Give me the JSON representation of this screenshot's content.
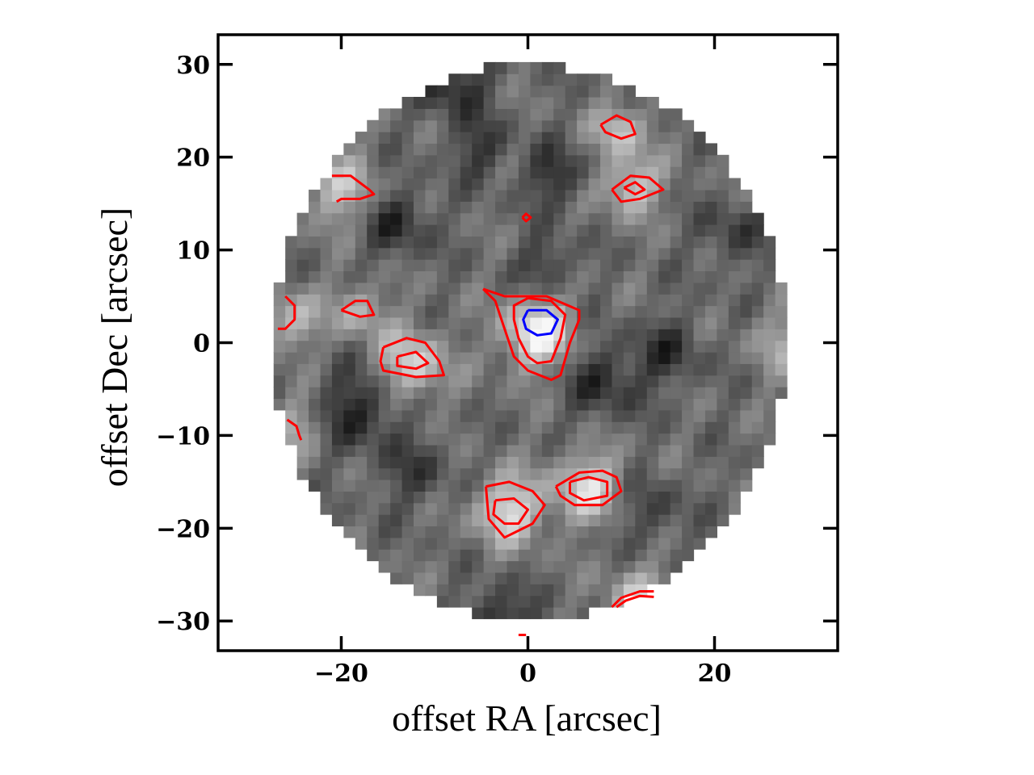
{
  "chart_data": {
    "type": "heatmap",
    "xlabel": "offset RA [arcsec]",
    "ylabel": "offset Dec [arcsec]",
    "xlim": [
      -33.2,
      33.2
    ],
    "ylim": [
      -33.2,
      33.2
    ],
    "x_ticks": [
      -20,
      0,
      20
    ],
    "x_tick_labels": [
      "−20",
      "0",
      "20"
    ],
    "y_ticks": [
      -30,
      -20,
      -10,
      0,
      10,
      20,
      30
    ],
    "y_tick_labels": [
      "−30",
      "−20",
      "−10",
      "0",
      "10",
      "20",
      "30"
    ],
    "colormap": "grayscale",
    "map_extent": {
      "center": [
        0.2,
        0.0
      ],
      "radius_x": 27.6,
      "radius_y": 30.0,
      "pixel_size_arcsec": 1.25
    },
    "bright_peaks": [
      {
        "x": 1.0,
        "y": 1.0,
        "amp": 1.0,
        "sigma": 2.6
      },
      {
        "x": -12.5,
        "y": -2.3,
        "amp": 0.75,
        "sigma": 2.6
      },
      {
        "x": -2.0,
        "y": -18.0,
        "amp": 0.8,
        "sigma": 2.6
      },
      {
        "x": 6.5,
        "y": -15.5,
        "amp": 0.75,
        "sigma": 2.6
      },
      {
        "x": 11.0,
        "y": 17.0,
        "amp": 0.7,
        "sigma": 2.2
      },
      {
        "x": 10.0,
        "y": 23.0,
        "amp": 0.6,
        "sigma": 2.0
      },
      {
        "x": -20.0,
        "y": 16.5,
        "amp": 0.6,
        "sigma": 2.5
      },
      {
        "x": -18.0,
        "y": 3.5,
        "amp": 0.5,
        "sigma": 2.0
      },
      {
        "x": 12.0,
        "y": -28.0,
        "amp": 0.65,
        "sigma": 2.5
      },
      {
        "x": -25.5,
        "y": 2.5,
        "amp": 0.55,
        "sigma": 2.2
      },
      {
        "x": 27.5,
        "y": 0.0,
        "amp": 0.4,
        "sigma": 2.5
      },
      {
        "x": -25.0,
        "y": -9.0,
        "amp": 0.45,
        "sigma": 2.0
      }
    ],
    "dark_features": [
      {
        "x": -18,
        "y": -7,
        "amp": 0.8,
        "sigma": 3.0
      },
      {
        "x": -5,
        "y": 21,
        "amp": 0.6,
        "sigma": 2.2
      },
      {
        "x": 3,
        "y": 18,
        "amp": 0.7,
        "sigma": 2.2
      },
      {
        "x": -14,
        "y": 13,
        "amp": 0.7,
        "sigma": 2.5
      },
      {
        "x": 2,
        "y": 8.5,
        "amp": 0.6,
        "sigma": 2.0
      },
      {
        "x": 8,
        "y": -4,
        "amp": 0.7,
        "sigma": 2.8
      },
      {
        "x": 15,
        "y": -1,
        "amp": 0.6,
        "sigma": 2.5
      },
      {
        "x": -3,
        "y": -30,
        "amp": 0.8,
        "sigma": 2.5
      },
      {
        "x": -8,
        "y": 28,
        "amp": 0.8,
        "sigma": 2.5
      },
      {
        "x": -12,
        "y": -14,
        "amp": 0.5,
        "sigma": 2.5
      },
      {
        "x": 13,
        "y": -18,
        "amp": 0.5,
        "sigma": 2.5
      },
      {
        "x": 22,
        "y": 12,
        "amp": 0.5,
        "sigma": 2.5
      }
    ],
    "contours": [
      {
        "color": "#ff0000",
        "points": [
          [
            -4.8,
            5.8
          ],
          [
            -2.5,
            5.0
          ],
          [
            2.0,
            5.0
          ],
          [
            5.5,
            3.5
          ],
          [
            5.5,
            2.5
          ],
          [
            4.5,
            0.0
          ],
          [
            3.5,
            -3.5
          ],
          [
            2.5,
            -4.0
          ],
          [
            0.0,
            -3.0
          ],
          [
            -1.5,
            -1.5
          ],
          [
            -2.5,
            1.5
          ],
          [
            -3.5,
            4.5
          ],
          [
            -4.8,
            5.8
          ]
        ]
      },
      {
        "color": "#ff0000",
        "points": [
          [
            0.0,
            4.8
          ],
          [
            2.5,
            4.5
          ],
          [
            4.0,
            3.0
          ],
          [
            3.5,
            0.5
          ],
          [
            2.5,
            -2.0
          ],
          [
            1.0,
            -2.2
          ],
          [
            0.0,
            -1.5
          ],
          [
            -1.0,
            0.5
          ],
          [
            -1.5,
            2.5
          ],
          [
            -1.5,
            4.0
          ],
          [
            0.0,
            4.8
          ]
        ]
      },
      {
        "color": "#0000ff",
        "points": [
          [
            0.0,
            3.5
          ],
          [
            2.0,
            3.5
          ],
          [
            3.2,
            2.5
          ],
          [
            2.5,
            1.0
          ],
          [
            1.0,
            0.8
          ],
          [
            -0.2,
            1.5
          ],
          [
            -0.5,
            2.5
          ],
          [
            0.0,
            3.5
          ]
        ]
      },
      {
        "color": "#ff0000",
        "points": [
          [
            -15.5,
            -0.5
          ],
          [
            -13.0,
            0.5
          ],
          [
            -11.0,
            0.0
          ],
          [
            -9.5,
            -2.0
          ],
          [
            -9.0,
            -3.5
          ],
          [
            -12.0,
            -3.7
          ],
          [
            -15.5,
            -3.0
          ],
          [
            -15.8,
            -2.0
          ],
          [
            -15.5,
            -0.5
          ]
        ]
      },
      {
        "color": "#ff0000",
        "points": [
          [
            -14.0,
            -1.5
          ],
          [
            -12.0,
            -1.0
          ],
          [
            -10.7,
            -2.2
          ],
          [
            -12.0,
            -2.8
          ],
          [
            -14.0,
            -2.5
          ],
          [
            -14.0,
            -1.5
          ]
        ]
      },
      {
        "color": "#ff0000",
        "points": [
          [
            -4.5,
            -15.5
          ],
          [
            -2.0,
            -15.0
          ],
          [
            0.5,
            -16.0
          ],
          [
            1.8,
            -17.5
          ],
          [
            0.5,
            -19.5
          ],
          [
            -2.5,
            -21.0
          ],
          [
            -4.2,
            -19.0
          ],
          [
            -4.5,
            -15.5
          ]
        ]
      },
      {
        "color": "#ff0000",
        "points": [
          [
            -3.5,
            -17.0
          ],
          [
            -1.5,
            -16.8
          ],
          [
            0.0,
            -18.0
          ],
          [
            -1.0,
            -19.5
          ],
          [
            -2.5,
            -19.5
          ],
          [
            -3.7,
            -18.5
          ],
          [
            -3.5,
            -17.0
          ]
        ]
      },
      {
        "color": "#ff0000",
        "points": [
          [
            3.0,
            -15.5
          ],
          [
            5.5,
            -14.0
          ],
          [
            8.0,
            -13.8
          ],
          [
            9.5,
            -14.5
          ],
          [
            10.0,
            -16.0
          ],
          [
            8.0,
            -17.5
          ],
          [
            5.0,
            -17.5
          ],
          [
            3.5,
            -16.5
          ],
          [
            3.0,
            -15.5
          ]
        ]
      },
      {
        "color": "#ff0000",
        "points": [
          [
            4.5,
            -15.0
          ],
          [
            6.5,
            -14.5
          ],
          [
            8.5,
            -15.0
          ],
          [
            8.5,
            -16.5
          ],
          [
            6.0,
            -17.0
          ],
          [
            4.5,
            -16.2
          ],
          [
            4.5,
            -15.0
          ]
        ]
      },
      {
        "color": "#ff0000",
        "points": [
          [
            9.0,
            16.5
          ],
          [
            11.0,
            18.0
          ],
          [
            13.0,
            17.8
          ],
          [
            14.5,
            16.5
          ],
          [
            12.0,
            15.5
          ],
          [
            10.0,
            15.2
          ],
          [
            9.0,
            16.5
          ]
        ]
      },
      {
        "color": "#ff0000",
        "points": [
          [
            10.3,
            16.7
          ],
          [
            11.5,
            17.3
          ],
          [
            12.5,
            16.5
          ],
          [
            11.5,
            16.0
          ],
          [
            10.3,
            16.7
          ]
        ]
      },
      {
        "color": "#ff0000",
        "points": [
          [
            7.8,
            23.5
          ],
          [
            9.5,
            24.5
          ],
          [
            11.0,
            23.8
          ],
          [
            11.5,
            22.5
          ],
          [
            10.0,
            22.0
          ],
          [
            8.3,
            22.7
          ],
          [
            7.8,
            23.5
          ]
        ]
      },
      {
        "color": "#ff0000",
        "points": [
          [
            -21.0,
            18.0
          ],
          [
            -19.0,
            18.0
          ],
          [
            -17.0,
            16.5
          ],
          [
            -16.5,
            16.0
          ],
          [
            -18.0,
            15.5
          ],
          [
            -20.0,
            15.5
          ],
          [
            -20.5,
            15.2
          ]
        ]
      },
      {
        "color": "#ff0000",
        "points": [
          [
            -20.0,
            3.5
          ],
          [
            -18.5,
            4.5
          ],
          [
            -17.2,
            4.5
          ],
          [
            -16.5,
            3.0
          ],
          [
            -18.0,
            2.8
          ],
          [
            -20.0,
            3.5
          ]
        ]
      },
      {
        "color": "#ff0000",
        "points": [
          [
            -26.0,
            5.0
          ],
          [
            -25.0,
            4.0
          ],
          [
            -25.0,
            2.5
          ],
          [
            -26.0,
            1.5
          ],
          [
            -26.8,
            1.5
          ]
        ]
      },
      {
        "color": "#ff0000",
        "points": [
          [
            -25.8,
            -8.3
          ],
          [
            -24.8,
            -9.0
          ],
          [
            -24.5,
            -10.0
          ],
          [
            -24.3,
            -10.5
          ]
        ]
      },
      {
        "color": "#ff0000",
        "points": [
          [
            9.0,
            -28.5
          ],
          [
            10.0,
            -27.5
          ],
          [
            12.0,
            -26.8
          ],
          [
            13.5,
            -26.8
          ]
        ]
      },
      {
        "color": "#ff0000",
        "points": [
          [
            9.5,
            -28.5
          ],
          [
            10.5,
            -27.8
          ],
          [
            12.0,
            -27.3
          ],
          [
            13.5,
            -27.4
          ]
        ]
      },
      {
        "color": "#ff0000",
        "points": [
          [
            -0.6,
            13.5
          ],
          [
            -0.2,
            13.9
          ],
          [
            0.3,
            13.5
          ],
          [
            -0.2,
            13.1
          ],
          [
            -0.6,
            13.5
          ]
        ]
      },
      {
        "color": "#ff0000",
        "points": [
          [
            -1.0,
            -31.5
          ],
          [
            -0.2,
            -31.5
          ]
        ]
      }
    ]
  }
}
